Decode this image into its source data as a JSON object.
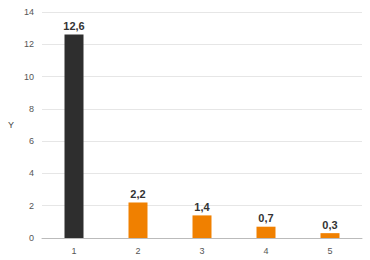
{
  "chart_data": {
    "type": "bar",
    "categories": [
      "1",
      "2",
      "3",
      "4",
      "5"
    ],
    "values": [
      12.6,
      2.2,
      1.4,
      0.7,
      0.3
    ],
    "value_labels": [
      "12,6",
      "2,2",
      "1,4",
      "0,7",
      "0,3"
    ],
    "colors": [
      "#2e2e2e",
      "#f08000",
      "#f08000",
      "#f08000",
      "#f08000"
    ],
    "ylabel": "Y",
    "ylim": [
      0,
      14
    ],
    "yticks": [
      0,
      2,
      4,
      6,
      8,
      10,
      12,
      14
    ],
    "grid": true,
    "data_labels": true
  }
}
